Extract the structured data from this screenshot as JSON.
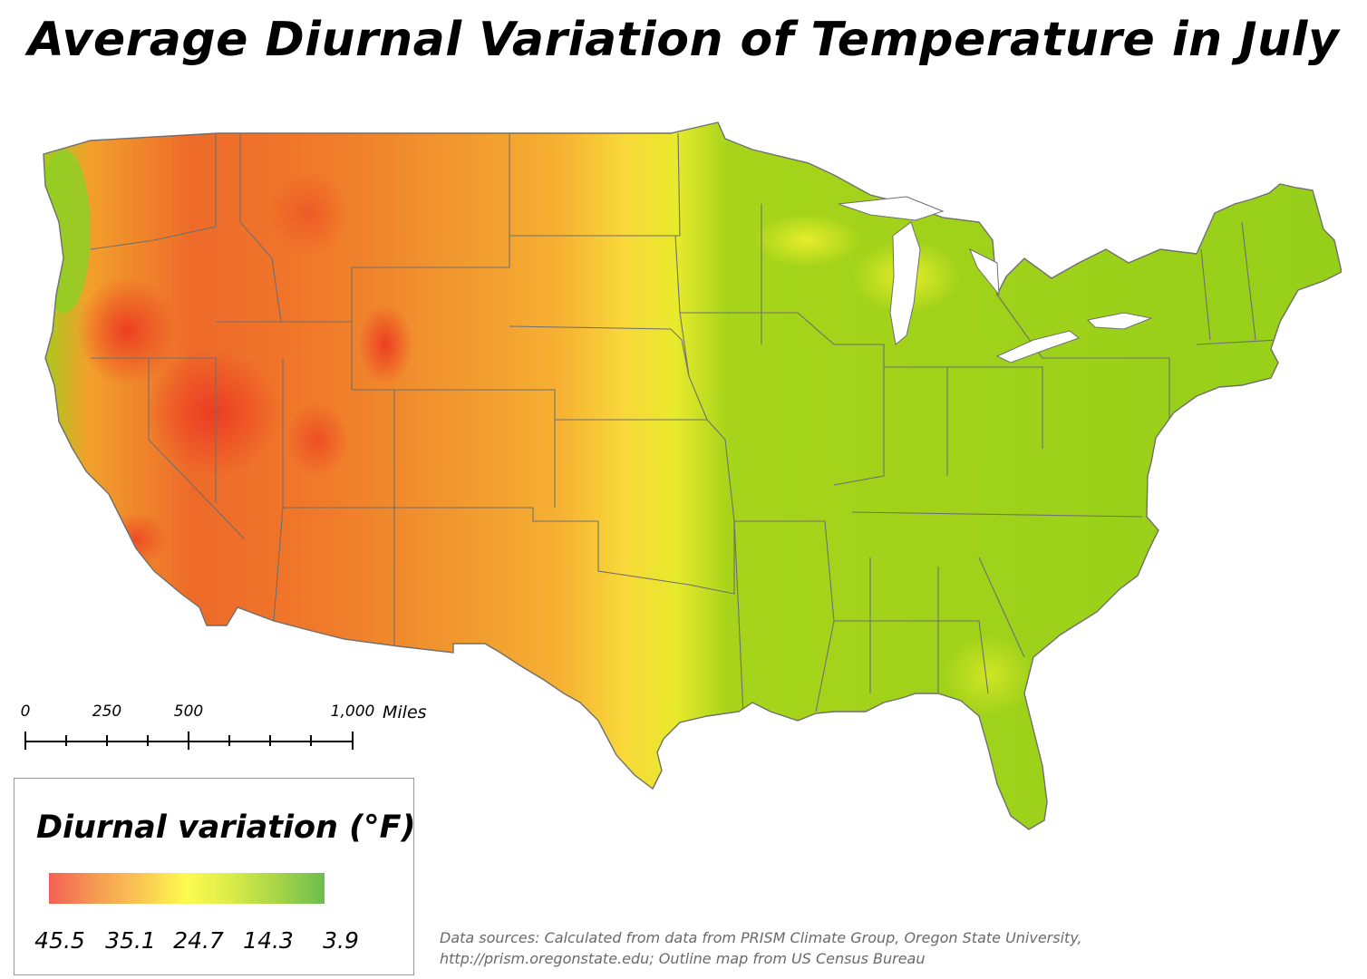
{
  "title": "Average Diurnal Variation of Temperature in July",
  "scale_bar": {
    "labels": [
      {
        "text": "0",
        "miles": 0
      },
      {
        "text": "250",
        "miles": 250
      },
      {
        "text": "500",
        "miles": 500
      },
      {
        "text": "1,000",
        "miles": 1000
      }
    ],
    "unit": "Miles"
  },
  "legend": {
    "title": "Diurnal variation (°F)",
    "values": [
      "45.5",
      "35.1",
      "24.7",
      "14.3",
      "3.9"
    ],
    "colors": [
      "#f46055",
      "#f59a52",
      "#fbc753",
      "#fdfb4f",
      "#d8eb48",
      "#a6d447",
      "#6cbe4f"
    ]
  },
  "source": {
    "line1": "Data sources: Calculated from data from PRISM Climate Group, Oregon State University,",
    "line2": "http://prism.oregonstate.edu; Outline map from US Census Bureau"
  },
  "map_colors": {
    "west_hot": "#f07a2a",
    "west_core": "#ee4a26",
    "plains": "#f6a82e",
    "mid": "#f8d43a",
    "transition": "#e6ea30",
    "east": "#9bd21a",
    "border": "#6f6f6f"
  }
}
